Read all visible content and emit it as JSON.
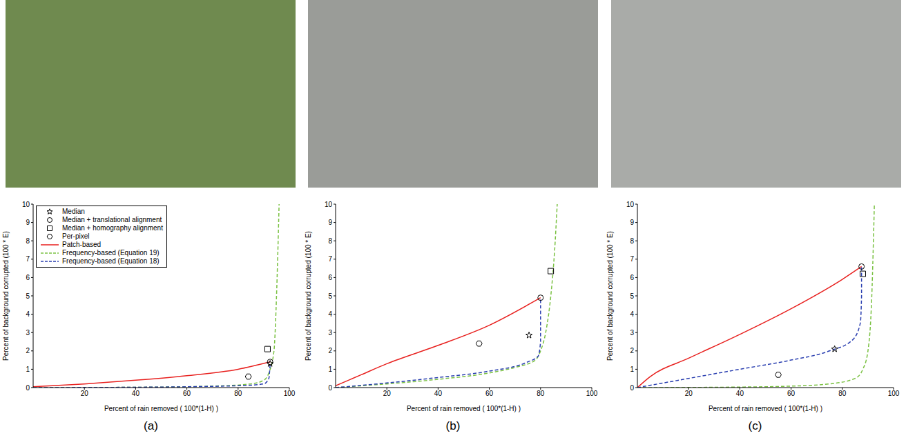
{
  "chart_data": [
    {
      "type": "line",
      "panel": "(a)",
      "x_label": "Percent of rain removed ( 100*(1-H) )",
      "y_label": "Percent of background corrupted (100 * E)",
      "xlim": [
        0,
        100
      ],
      "xticks": [
        20,
        40,
        60,
        80,
        100
      ],
      "ylim": [
        0,
        10
      ],
      "yticks": [
        0,
        1,
        2,
        3,
        4,
        5,
        6,
        7,
        8,
        9,
        10
      ],
      "grid": false,
      "legend": "upper left",
      "series": [
        {
          "name": "Median",
          "type": "scatter",
          "marker": "star",
          "color": "#000000",
          "x": [
            92.5
          ],
          "values": [
            1.3
          ]
        },
        {
          "name": "Median + translational alignment",
          "type": "scatter",
          "marker": "circle",
          "color": "#000000",
          "x": [
            92.5
          ],
          "values": [
            1.4
          ]
        },
        {
          "name": "Median + homography alignment",
          "type": "scatter",
          "marker": "square",
          "color": "#000000",
          "x": [
            91.5
          ],
          "values": [
            2.1
          ]
        },
        {
          "name": "Per-pixel",
          "type": "scatter",
          "marker": "hexagon",
          "color": "#000000",
          "x": [
            84
          ],
          "values": [
            0.6
          ]
        },
        {
          "name": "Patch-based",
          "type": "line",
          "line_style": "solid",
          "color": "#e8211f",
          "x": [
            0,
            20,
            40,
            60,
            80,
            92.5
          ],
          "values": [
            0.05,
            0.2,
            0.4,
            0.65,
            1.0,
            1.4
          ]
        },
        {
          "name": "Frequency-based (Equation 19)",
          "type": "line",
          "line_style": "dashed",
          "color": "#7ac142",
          "x": [
            0,
            40,
            70,
            85,
            90,
            92,
            94,
            95,
            96
          ],
          "values": [
            0,
            0.02,
            0.08,
            0.2,
            0.4,
            0.8,
            2,
            5,
            10
          ]
        },
        {
          "name": "Frequency-based (Equation 18)",
          "type": "line",
          "line_style": "dashed",
          "color": "#2a3fb0",
          "x": [
            0,
            40,
            80,
            90,
            92,
            92.5
          ],
          "values": [
            0,
            0.02,
            0.1,
            0.2,
            0.5,
            1.3
          ]
        }
      ]
    },
    {
      "type": "line",
      "panel": "(b)",
      "x_label": "Percent of rain removed ( 100*(1-H) )",
      "y_label": "Percent of background corrupted (100 * E)",
      "xlim": [
        0,
        100
      ],
      "xticks": [
        20,
        40,
        60,
        80,
        100
      ],
      "ylim": [
        0,
        10
      ],
      "yticks": [
        0,
        1,
        2,
        3,
        4,
        5,
        6,
        7,
        8,
        9,
        10
      ],
      "grid": false,
      "series": [
        {
          "name": "Median",
          "type": "scatter",
          "marker": "star",
          "color": "#000000",
          "x": [
            75.5
          ],
          "values": [
            2.85
          ]
        },
        {
          "name": "Median + translational alignment",
          "type": "scatter",
          "marker": "circle",
          "color": "#000000",
          "x": [
            80
          ],
          "values": [
            4.9
          ]
        },
        {
          "name": "Median + homography alignment",
          "type": "scatter",
          "marker": "square",
          "color": "#000000",
          "x": [
            84
          ],
          "values": [
            6.35
          ]
        },
        {
          "name": "Per-pixel",
          "type": "scatter",
          "marker": "hexagon",
          "color": "#000000",
          "x": [
            56
          ],
          "values": [
            2.4
          ]
        },
        {
          "name": "Patch-based",
          "type": "line",
          "line_style": "solid",
          "color": "#e8211f",
          "x": [
            0,
            10,
            20,
            40,
            60,
            80
          ],
          "values": [
            0.1,
            0.7,
            1.3,
            2.3,
            3.4,
            4.9
          ]
        },
        {
          "name": "Frequency-based (Equation 19)",
          "type": "line",
          "line_style": "dashed",
          "color": "#7ac142",
          "x": [
            0,
            20,
            40,
            60,
            70,
            78,
            80,
            82,
            84,
            85.5,
            86.5
          ],
          "values": [
            0,
            0.2,
            0.45,
            0.8,
            1.1,
            1.5,
            2,
            3,
            5,
            7.5,
            10
          ]
        },
        {
          "name": "Frequency-based (Equation 18)",
          "type": "line",
          "line_style": "dashed",
          "color": "#2a3fb0",
          "x": [
            0,
            20,
            40,
            60,
            75,
            79,
            80,
            80
          ],
          "values": [
            0,
            0.25,
            0.55,
            0.9,
            1.4,
            1.7,
            2.5,
            4.9
          ]
        }
      ]
    },
    {
      "type": "line",
      "panel": "(c)",
      "x_label": "Percent of rain removed ( 100*(1-H) )",
      "y_label": "Percent of background corrupted (100 * E)",
      "xlim": [
        0,
        100
      ],
      "xticks": [
        20,
        40,
        60,
        80,
        100
      ],
      "ylim": [
        0,
        10
      ],
      "yticks": [
        0,
        1,
        2,
        3,
        4,
        5,
        6,
        7,
        8,
        9,
        10
      ],
      "grid": false,
      "series": [
        {
          "name": "Median",
          "type": "scatter",
          "marker": "star",
          "color": "#000000",
          "x": [
            77
          ],
          "values": [
            2.1
          ]
        },
        {
          "name": "Median + translational alignment",
          "type": "scatter",
          "marker": "circle",
          "color": "#000000",
          "x": [
            87.5
          ],
          "values": [
            6.6
          ]
        },
        {
          "name": "Median + homography alignment",
          "type": "scatter",
          "marker": "square",
          "color": "#000000",
          "x": [
            88
          ],
          "values": [
            6.2
          ]
        },
        {
          "name": "Per-pixel",
          "type": "scatter",
          "marker": "hexagon",
          "color": "#000000",
          "x": [
            55
          ],
          "values": [
            0.7
          ]
        },
        {
          "name": "Patch-based",
          "type": "line",
          "line_style": "solid",
          "color": "#e8211f",
          "x": [
            0,
            5,
            20,
            40,
            60,
            80,
            87.5
          ],
          "values": [
            0,
            0.6,
            1.6,
            2.9,
            4.3,
            5.9,
            6.6
          ]
        },
        {
          "name": "Frequency-based (Equation 19)",
          "type": "line",
          "line_style": "dashed",
          "color": "#7ac142",
          "x": [
            0,
            40,
            60,
            75,
            85,
            88,
            90,
            91.5,
            92.5
          ],
          "values": [
            0,
            0.03,
            0.08,
            0.2,
            0.5,
            1,
            2,
            5,
            10
          ]
        },
        {
          "name": "Frequency-based (Equation 18)",
          "type": "line",
          "line_style": "dashed",
          "color": "#2a3fb0",
          "x": [
            0,
            20,
            40,
            60,
            75,
            84,
            87,
            87.5,
            87.5
          ],
          "values": [
            0,
            0.5,
            1,
            1.5,
            2,
            2.6,
            3.5,
            5,
            6.6
          ]
        }
      ]
    }
  ]
}
